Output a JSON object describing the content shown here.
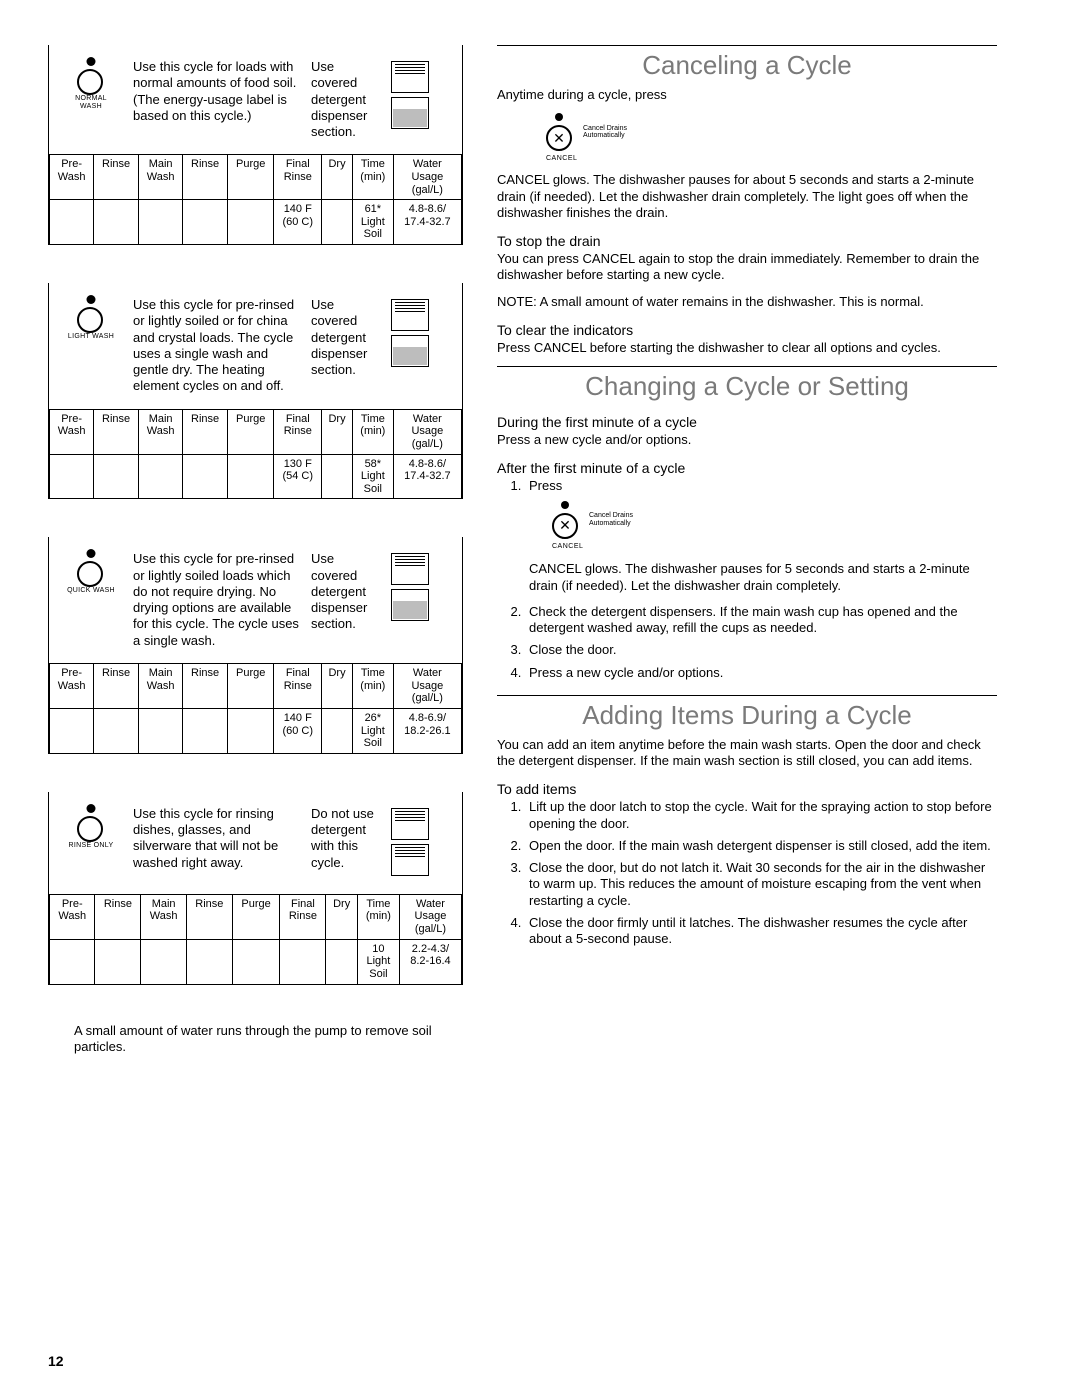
{
  "tableHeaders": [
    "Pre-\nWash",
    "Rinse",
    "Main\nWash",
    "Rinse",
    "Purge",
    "Final\nRinse",
    "Dry",
    "Time\n(min)",
    "Water\nUsage\n(gal/L)"
  ],
  "cycles": [
    {
      "iconLabel": "NORMAL\nWASH",
      "desc": "Use this cycle for loads with normal amounts of food soil. (The energy-usage label is based on this cycle.)",
      "detergent": "Use covered detergent dispenser section.",
      "dispenser": "top-lines",
      "row": [
        "",
        "",
        "",
        "",
        "",
        "140 F\n(60 C)",
        "",
        "61*\nLight\nSoil",
        "4.8-8.6/\n17.4-32.7"
      ]
    },
    {
      "iconLabel": "LIGHT WASH",
      "desc": "Use this cycle for pre-rinsed or lightly soiled or for china and crystal loads. The cycle uses a single wash and gentle dry. The heating element cycles on and off.",
      "detergent": "Use covered detergent dispenser section.",
      "dispenser": "top-lines",
      "row": [
        "",
        "",
        "",
        "",
        "",
        "130 F\n(54 C)",
        "",
        "58*\nLight\nSoil",
        "4.8-8.6/\n17.4-32.7"
      ]
    },
    {
      "iconLabel": "QUICK WASH",
      "desc": "Use this cycle for pre-rinsed or lightly soiled loads which do not require drying. No drying options are available for this cycle. The cycle uses a single wash.",
      "detergent": "Use covered detergent dispenser section.",
      "dispenser": "top-lines",
      "row": [
        "",
        "",
        "",
        "",
        "",
        "140 F\n(60 C)",
        "",
        "26*\nLight\nSoil",
        "4.8-6.9/\n18.2-26.1"
      ]
    },
    {
      "iconLabel": "RINSE ONLY",
      "desc": "Use this cycle for rinsing dishes, glasses, and silverware that will not be washed right away.",
      "detergent": "Do not use detergent with this cycle.",
      "dispenser": "both-lines",
      "row": [
        "",
        "",
        "",
        "",
        "",
        "",
        "",
        "10\nLight\nSoil",
        "2.2-4.3/\n8.2-16.4"
      ]
    }
  ],
  "footnote": "A small amount of water runs through the pump to remove soil particles.",
  "pageNum": "12",
  "right": {
    "canceling": {
      "title": "Canceling a Cycle",
      "intro": "Anytime during a cycle, press",
      "cancelSide": "Cancel Drains\nAutomatically",
      "cancelUnder": "CANCEL",
      "p1": "CANCEL glows. The dishwasher pauses for about 5 seconds and starts a 2-minute drain (if needed). Let the dishwasher drain completely. The light goes off when the dishwasher finishes the drain.",
      "stopHead": "To stop the drain",
      "stopP1": "You can press CANCEL again to stop the drain immediately. Remember to drain the dishwasher before starting a new cycle.",
      "stopNote": "NOTE: A small amount of water remains in the dishwasher. This is normal.",
      "clearHead": "To clear the indicators",
      "clearP": "Press CANCEL before starting the dishwasher to clear all options and cycles."
    },
    "changing": {
      "title": "Changing a Cycle or Setting",
      "firstHead": "During the first minute of a cycle",
      "firstP": "Press a new cycle and/or options.",
      "afterHead": "After the first minute of a cycle",
      "step1": "Press",
      "step1p": "CANCEL glows. The dishwasher pauses for 5 seconds and starts a 2-minute drain (if needed). Let the dishwasher drain completely.",
      "step2": "Check the detergent dispensers. If the main wash cup has opened and the detergent washed away, refill the cups as needed.",
      "step3": "Close the door.",
      "step4": "Press a new cycle and/or options."
    },
    "adding": {
      "title": "Adding Items During a Cycle",
      "intro": "You can add an item anytime before the main wash starts. Open the door and check the detergent dispenser. If the main wash section is still closed, you can add items.",
      "addHead": "To add items",
      "steps": [
        "Lift up the door latch to stop the cycle. Wait for the spraying action to stop before opening the door.",
        "Open the door. If the main wash detergent dispenser is still closed, add the item.",
        "Close the door, but do not latch it. Wait 30 seconds for the air in the dishwasher to warm up. This reduces the amount of moisture escaping from the vent when restarting a cycle.",
        "Close the door firmly until it latches. The dishwasher resumes the cycle after about a 5-second pause."
      ]
    }
  }
}
